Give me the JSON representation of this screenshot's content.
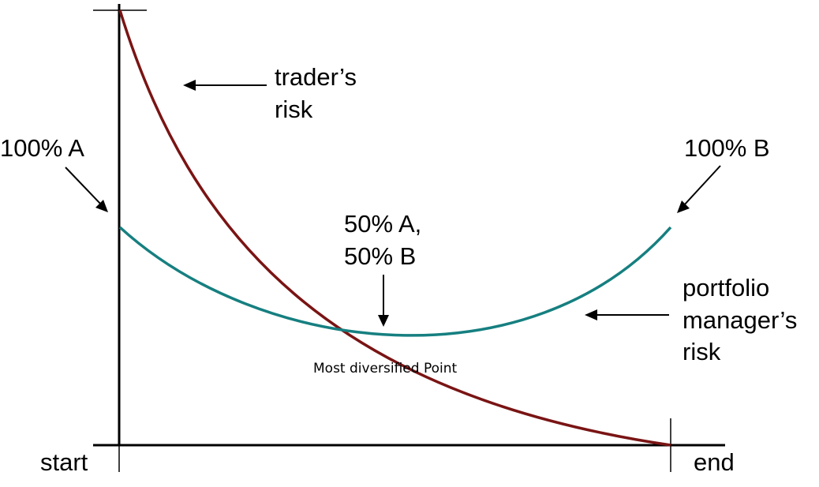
{
  "labels": {
    "traders_risk_line1": "trader’s",
    "traders_risk_line2": "risk",
    "hundred_a": "100% A",
    "hundred_b": "100% B",
    "fifty_line1": "50% A,",
    "fifty_line2": "50% B",
    "portfolio_line1": "portfolio",
    "portfolio_line2": "manager’s",
    "portfolio_line3": "risk",
    "most_diversified": "Most diversified Point",
    "start": "start",
    "end": "end"
  },
  "colors": {
    "traders_risk_curve": "#7a1414",
    "portfolio_risk_curve": "#167f80",
    "axis": "#000000",
    "text": "#000000",
    "background": "#ffffff"
  },
  "icons": {
    "arrow_to_traders_curve": "arrow-left-icon",
    "arrow_to_portfolio_curve": "arrow-left-icon",
    "arrow_to_100a": "arrow-down-right-icon",
    "arrow_to_100b": "arrow-down-left-icon",
    "arrow_to_min": "arrow-down-icon"
  }
}
